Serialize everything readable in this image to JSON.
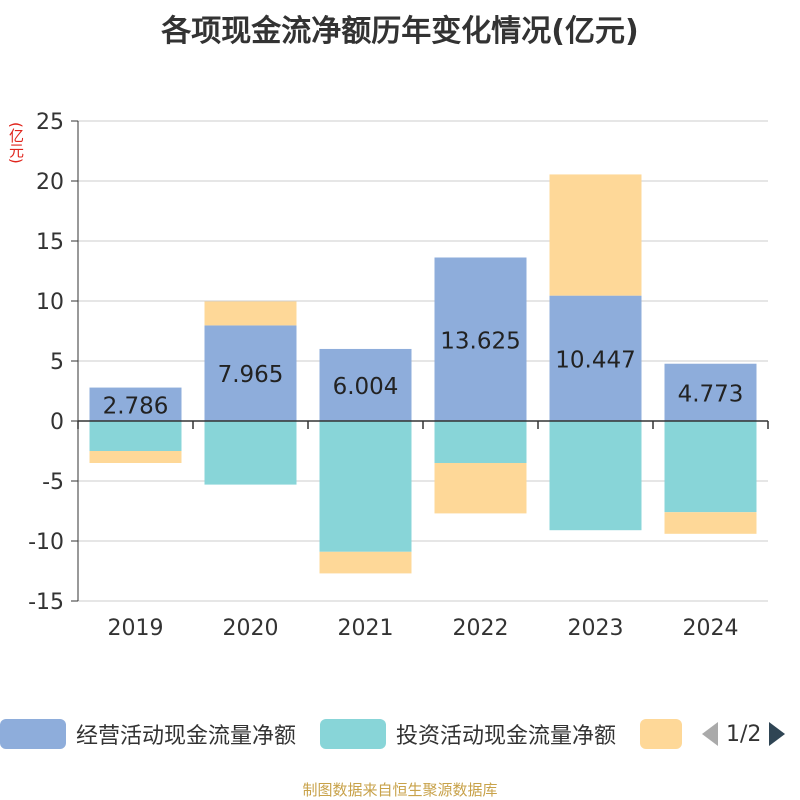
{
  "chart_data": {
    "type": "bar",
    "stacked": true,
    "title": "各项现金流净额历年变化情况(亿元)",
    "unit_label": "(亿元)",
    "categories": [
      "2019",
      "2020",
      "2021",
      "2022",
      "2023",
      "2024"
    ],
    "series": [
      {
        "name": "经营活动现金流量净额",
        "color": "#8eaddb",
        "values": [
          2.786,
          7.965,
          6.004,
          13.625,
          10.447,
          4.773
        ],
        "labels": [
          "2.786",
          "7.965",
          "6.004",
          "13.625",
          "10.447",
          "4.773"
        ]
      },
      {
        "name": "投资活动现金流量净额",
        "color": "#88d5d8",
        "values": [
          -2.5,
          -5.3,
          -10.9,
          -3.5,
          -9.1,
          -7.6
        ]
      },
      {
        "name": "",
        "color": "#fed898",
        "values": [
          -1.0,
          2.0,
          -1.8,
          -4.2,
          10.1,
          -1.8
        ]
      }
    ],
    "ylim": [
      -15,
      25
    ],
    "yticks": [
      -15,
      -10,
      -5,
      0,
      5,
      10,
      15,
      20,
      25
    ],
    "grid": true,
    "legend_position": "bottom"
  },
  "legend": {
    "page_indicator": "1/2"
  },
  "source_note": "制图数据来自恒生聚源数据库"
}
